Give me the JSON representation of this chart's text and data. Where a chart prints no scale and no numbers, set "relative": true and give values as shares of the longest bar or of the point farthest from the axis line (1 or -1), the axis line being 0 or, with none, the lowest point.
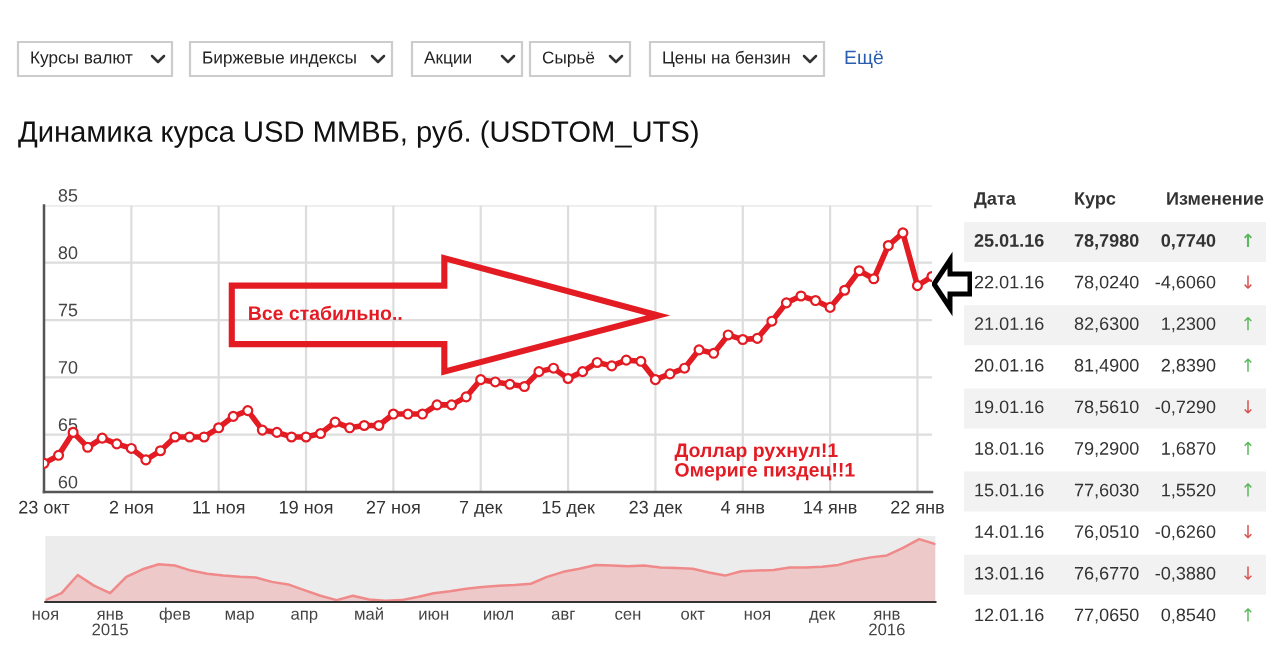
{
  "chart_data": [
    {
      "type": "other",
      "annotations": [
        "Курсы валют",
        "Биржевые индексы",
        "Акции",
        "Сырьё",
        "Цены на бензин",
        "Ещё"
      ]
    },
    {
      "type": "line",
      "title": "Динамика курса USD ММВБ, руб. (USDTOM_UTS)",
      "categories": [
        "23 окт",
        null,
        null,
        null,
        null,
        null,
        "2 ноя",
        null,
        null,
        null,
        null,
        null,
        "11 ноя",
        null,
        null,
        null,
        null,
        null,
        "19 ноя",
        null,
        null,
        null,
        null,
        null,
        "27 ноя",
        null,
        null,
        null,
        null,
        null,
        "7 дек",
        null,
        null,
        null,
        null,
        null,
        "15 дек",
        null,
        null,
        null,
        null,
        null,
        "23 дек",
        null,
        null,
        null,
        null,
        null,
        "4 янв",
        null,
        null,
        null,
        null,
        null,
        "14 янв",
        null,
        null,
        null,
        null,
        null,
        "22 янв",
        null
      ],
      "series": [
        {
          "color": "#e31b23",
          "values": [
            62.5,
            63.2,
            65.2,
            63.9,
            64.7,
            64.2,
            63.8,
            62.8,
            63.6,
            64.8,
            64.8,
            64.8,
            65.6,
            66.6,
            67.1,
            65.4,
            65.2,
            64.8,
            64.8,
            65.1,
            66.1,
            65.6,
            65.8,
            65.8,
            66.8,
            66.8,
            66.8,
            67.6,
            67.6,
            68.3,
            69.8,
            69.6,
            69.4,
            69.2,
            70.5,
            70.8,
            69.9,
            70.5,
            71.3,
            71.0,
            71.5,
            71.4,
            69.8,
            70.3,
            70.8,
            72.4,
            72.1,
            73.7,
            73.3,
            73.4,
            74.9,
            76.5,
            77.1,
            76.7,
            76.1,
            77.6,
            79.3,
            78.6,
            81.5,
            82.6,
            78.0,
            78.8
          ]
        }
      ],
      "ylim": [
        60,
        85
      ],
      "yticks": [
        60,
        65,
        70,
        75,
        80,
        85
      ],
      "grid": true,
      "marker": "circle",
      "line_style": "solid",
      "annotations": [
        "Все стабильно..",
        "Доллар рухнул!1\nОмериге пиздец!!1"
      ]
    },
    {
      "type": "other",
      "annotations": [
        "Дата",
        "Курс",
        "Изменение",
        "25.01.16",
        "78,7980",
        "0,7740",
        "↑",
        "22.01.16",
        "78,0240",
        "-4,6060",
        "↓",
        "21.01.16",
        "82,6300",
        "1,2300",
        "↑",
        "20.01.16",
        "81,4900",
        "2,8390",
        "↑",
        "19.01.16",
        "78,5610",
        "-0,7290",
        "↓",
        "18.01.16",
        "79,2900",
        "1,6870",
        "↑",
        "15.01.16",
        "77,6030",
        "1,5520",
        "↑",
        "14.01.16",
        "76,0510",
        "-0,6260",
        "↓",
        "13.01.16",
        "76,6770",
        "-0,3880",
        "↓",
        "12.01.16",
        "77,0650",
        "0,8540",
        "↑"
      ],
      "colors": [
        "#5cb85c",
        "#d9534f",
        "#5cb85c",
        "#5cb85c",
        "#d9534f",
        "#5cb85c",
        "#5cb85c",
        "#d9534f",
        "#d9534f",
        "#5cb85c"
      ]
    },
    {
      "type": "area",
      "relative": true,
      "categories": [
        "ноя",
        null,
        null,
        null,
        "янв\n2015",
        null,
        null,
        null,
        "фев",
        null,
        null,
        null,
        "мар",
        null,
        null,
        null,
        "апр",
        null,
        null,
        null,
        "май",
        null,
        null,
        null,
        "июн",
        null,
        null,
        null,
        "июл",
        null,
        null,
        null,
        "авг",
        null,
        null,
        null,
        "сен",
        null,
        null,
        null,
        "окт",
        null,
        null,
        null,
        "ноя",
        null,
        null,
        null,
        "дек",
        null,
        null,
        null,
        "янв\n2016",
        null,
        null,
        null
      ],
      "series": [
        {
          "color": "#f08a8a",
          "values": [
            0.03,
            0.14,
            0.43,
            0.26,
            0.14,
            0.4,
            0.52,
            0.6,
            0.58,
            0.5,
            0.45,
            0.42,
            0.4,
            0.39,
            0.32,
            0.28,
            0.19,
            0.1,
            0.03,
            0.1,
            0.04,
            0.02,
            0.03,
            0.08,
            0.14,
            0.17,
            0.21,
            0.24,
            0.26,
            0.27,
            0.29,
            0.4,
            0.48,
            0.53,
            0.59,
            0.58,
            0.57,
            0.58,
            0.55,
            0.54,
            0.53,
            0.47,
            0.42,
            0.49,
            0.5,
            0.51,
            0.55,
            0.55,
            0.56,
            0.59,
            0.66,
            0.71,
            0.74,
            0.86,
            1.0,
            0.92
          ]
        }
      ]
    }
  ]
}
